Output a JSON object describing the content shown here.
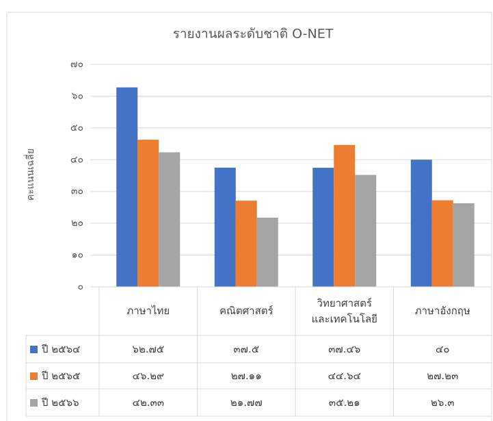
{
  "chart_data": {
    "type": "bar",
    "title": "รายงานผลระดับชาติ O-NET",
    "y_label": "คะแนนเฉลี่ย",
    "categories": [
      "ภาษาไทย",
      "คณิตศาสตร์",
      "วิทยาศาสตร์\nและเทคโนโลยี",
      "ภาษาอังกฤษ"
    ],
    "series": [
      {
        "name": "ปี ๒๕๖๔",
        "color": "#4472c4",
        "values": [
          62.75,
          37.5,
          37.46,
          40
        ],
        "value_labels": [
          "๖๒.๗๕",
          "๓๗.๕",
          "๓๗.๔๖",
          "๔๐"
        ]
      },
      {
        "name": "ปี ๒๕๖๕",
        "color": "#ed7d31",
        "values": [
          46.29,
          27.11,
          44.64,
          27.23
        ],
        "value_labels": [
          "๔๖.๒๙",
          "๒๗.๑๑",
          "๔๔.๖๔",
          "๒๗.๒๓"
        ]
      },
      {
        "name": "ปี ๒๕๖๖",
        "color": "#a5a5a5",
        "values": [
          42.33,
          21.77,
          35.21,
          26.3
        ],
        "value_labels": [
          "๔๒.๓๓",
          "๒๑.๗๗",
          "๓๕.๒๑",
          "๒๖.๓"
        ]
      }
    ],
    "ylim": [
      0,
      70
    ],
    "yticks": [
      {
        "value": 0,
        "label": "๐"
      },
      {
        "value": 10,
        "label": "๑๐"
      },
      {
        "value": 20,
        "label": "๒๐"
      },
      {
        "value": 30,
        "label": "๓๐"
      },
      {
        "value": 40,
        "label": "๔๐"
      },
      {
        "value": 50,
        "label": "๕๐"
      },
      {
        "value": 60,
        "label": "๖๐"
      },
      {
        "value": 70,
        "label": "๗๐"
      }
    ],
    "grid": true
  }
}
